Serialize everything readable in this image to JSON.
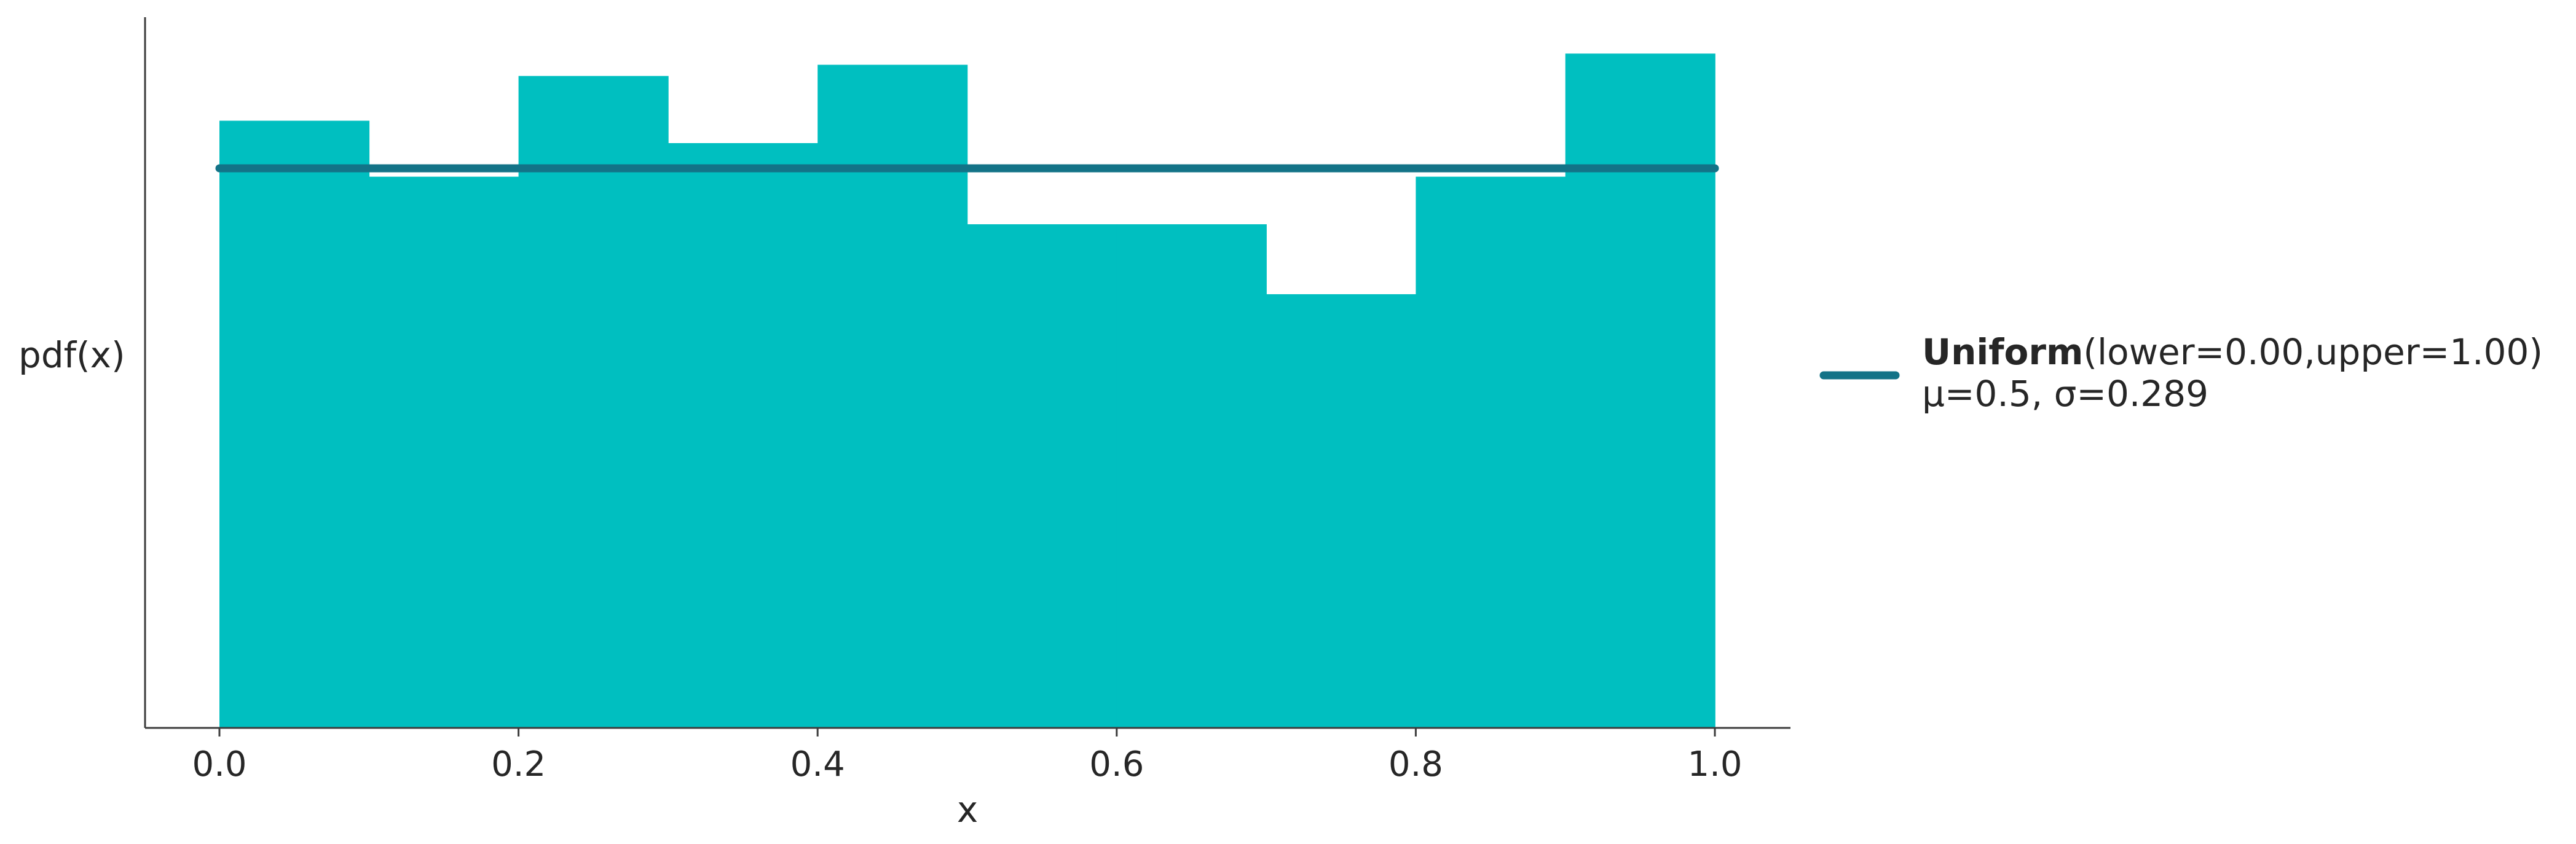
{
  "chart_data": {
    "type": "bar",
    "subtype": "histogram",
    "xlabel": "x",
    "ylabel": "pdf(x)",
    "xlim": [
      -0.05,
      1.05
    ],
    "ylim": [
      0,
      1.27
    ],
    "xticks": [
      "0.0",
      "0.2",
      "0.4",
      "0.6",
      "0.8",
      "1.0"
    ],
    "yticks_visible": false,
    "grid": false,
    "legend_position": "right",
    "bins": [
      {
        "x0": 0.0,
        "x1": 0.1,
        "value": 1.085
      },
      {
        "x0": 0.1,
        "x1": 0.2,
        "value": 0.985
      },
      {
        "x0": 0.2,
        "x1": 0.3,
        "value": 1.165
      },
      {
        "x0": 0.3,
        "x1": 0.4,
        "value": 1.045
      },
      {
        "x0": 0.4,
        "x1": 0.5,
        "value": 1.185
      },
      {
        "x0": 0.5,
        "x1": 0.6,
        "value": 0.9
      },
      {
        "x0": 0.6,
        "x1": 0.7,
        "value": 0.9
      },
      {
        "x0": 0.7,
        "x1": 0.8,
        "value": 0.775
      },
      {
        "x0": 0.8,
        "x1": 0.9,
        "value": 0.985
      },
      {
        "x0": 0.9,
        "x1": 1.0,
        "value": 1.205
      }
    ],
    "series": [
      {
        "name": "Uniform(lower=0.00,upper=1.00)",
        "type": "line",
        "x": [
          0.0,
          1.0
        ],
        "y": [
          1.0,
          1.0
        ]
      }
    ],
    "legend": {
      "name_bold": "Uniform",
      "name_rest": "(lower=0.00,upper=1.00)",
      "stats": "μ=0.5, σ=0.289"
    },
    "colors": {
      "bars": "#00bfc0",
      "line": "#137387",
      "axis": "#3d3d3d"
    }
  }
}
